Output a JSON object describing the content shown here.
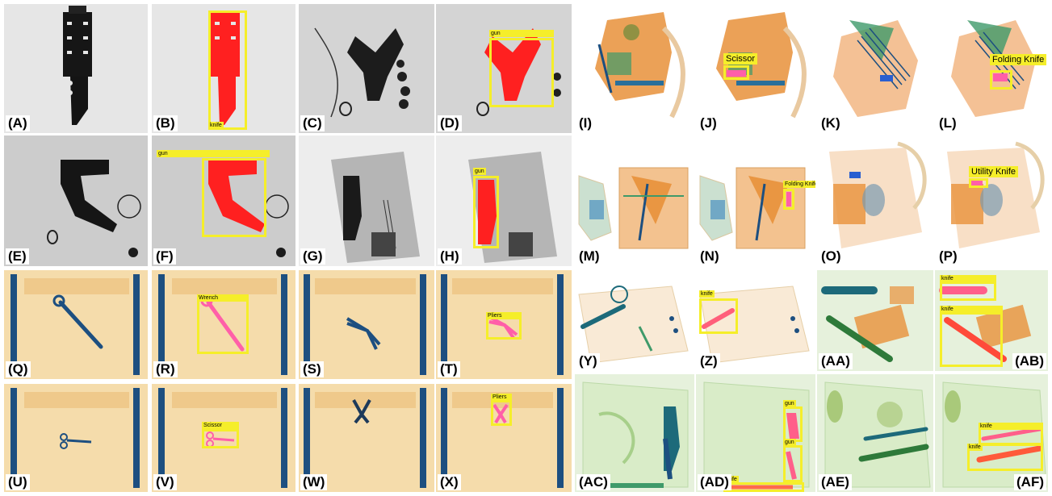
{
  "labels": {
    "A": "(A)",
    "B": "(B)",
    "C": "(C)",
    "D": "(D)",
    "E": "(E)",
    "F": "(F)",
    "G": "(G)",
    "H": "(H)",
    "I": "(I)",
    "J": "(J)",
    "K": "(K)",
    "L": "(L)",
    "M": "(M)",
    "N": "(N)",
    "O": "(O)",
    "P": "(P)",
    "Q": "(Q)",
    "R": "(R)",
    "S": "(S)",
    "T": "(T)",
    "U": "(U)",
    "V": "(V)",
    "W": "(W)",
    "X": "(X)",
    "Y": "(Y)",
    "Z": "(Z)",
    "AA": "(AA)",
    "AB": "(AB)",
    "AC": "(AC)",
    "AD": "(AD)",
    "AE": "(AE)",
    "AF": "(AF)"
  },
  "detections": {
    "B": "knife",
    "D": "gun",
    "F": "gun",
    "H": "gun",
    "J": "Scissor",
    "L": "Folding Knife",
    "N": "Folding Knife",
    "P": "Utility Knife",
    "R": "Wrench",
    "T": "Pliers",
    "V": "Scissor",
    "X": "Pliers",
    "Z": "knife",
    "AB_1": "knife",
    "AB_2": "knife",
    "AD_1": "gun",
    "AD_2": "gun",
    "AD_3": "knife",
    "AF_1": "knife",
    "AF_2": "knife"
  },
  "colors": {
    "highlight": "#f5ee2a",
    "red_mask": "#ff2020",
    "pink_mask": "#ff5fa8",
    "xray_orange": "#e8913a",
    "xray_blue": "#1d4f80",
    "xray_green": "#3f9a3a",
    "tray": "#f3d9a4"
  }
}
